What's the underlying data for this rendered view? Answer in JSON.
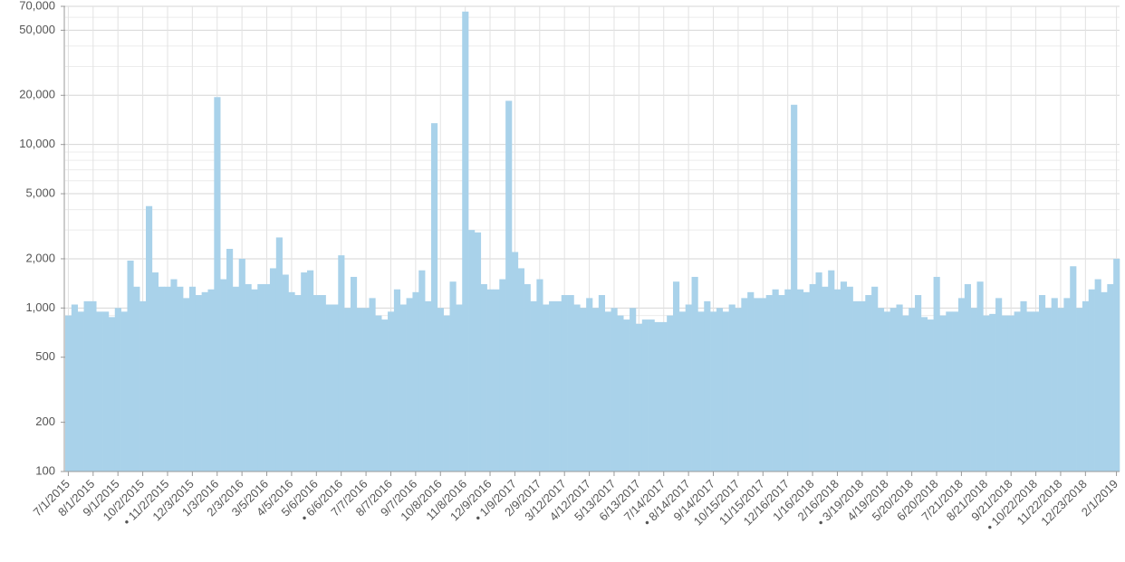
{
  "chart_data": {
    "type": "bar",
    "color": "#a9d2ea",
    "log": true,
    "grid": true,
    "ylim": [
      100,
      70000
    ],
    "yticks": [
      100,
      200,
      500,
      {
        "value": 1000,
        "label": "1,000"
      },
      {
        "value": 2000,
        "label": "2,000"
      },
      {
        "value": 5000,
        "label": "5,000"
      },
      {
        "value": 10000,
        "label": "10,000"
      },
      {
        "value": 20000,
        "label": "20,000"
      },
      {
        "value": 50000,
        "label": "50,000"
      },
      {
        "value": 70000,
        "label": "70,000"
      }
    ],
    "categories": [
      "7/1/2015",
      null,
      null,
      null,
      "8/1/2015",
      null,
      null,
      null,
      "9/1/2015",
      null,
      null,
      null,
      "10/2/2015",
      null,
      null,
      null,
      "• 11/2/2015",
      null,
      null,
      null,
      "12/3/2015",
      null,
      null,
      null,
      "1/3/2016",
      null,
      null,
      null,
      "2/3/2016",
      null,
      null,
      null,
      "3/5/2016",
      null,
      null,
      null,
      "4/5/2016",
      null,
      null,
      null,
      "5/6/2016",
      null,
      null,
      null,
      "• 6/6/2016",
      null,
      null,
      null,
      "7/7/2016",
      null,
      null,
      null,
      "8/7/2016",
      null,
      null,
      null,
      "9/7/2016",
      null,
      null,
      null,
      "10/8/2016",
      null,
      null,
      null,
      "11/8/2016",
      null,
      null,
      null,
      "12/9/2016",
      null,
      null,
      null,
      "• 1/9/2017",
      null,
      null,
      null,
      "2/9/2017",
      null,
      null,
      null,
      "3/12/2017",
      null,
      null,
      null,
      "4/12/2017",
      null,
      null,
      null,
      "5/13/2017",
      null,
      null,
      null,
      "6/13/2017",
      null,
      null,
      null,
      "7/14/2017",
      null,
      null,
      null,
      "• 8/14/2017",
      null,
      null,
      null,
      "9/14/2017",
      null,
      null,
      null,
      "10/15/2017",
      null,
      null,
      null,
      "11/15/2017",
      null,
      null,
      null,
      "12/16/2017",
      null,
      null,
      null,
      "1/16/2018",
      null,
      null,
      null,
      "2/16/2018",
      null,
      null,
      null,
      "• 3/19/2018",
      null,
      null,
      null,
      "4/19/2018",
      null,
      null,
      null,
      "5/20/2018",
      null,
      null,
      null,
      "6/20/2018",
      null,
      null,
      null,
      "7/21/2018",
      null,
      null,
      null,
      "8/21/2018",
      null,
      null,
      null,
      "9/21/2018",
      null,
      null,
      null,
      "• 10/22/2018",
      null,
      null,
      null,
      "11/22/2018",
      null,
      null,
      null,
      "12/23/2018",
      null,
      null,
      null,
      null,
      "2/1/2019"
    ],
    "values": [
      900,
      1050,
      950,
      1100,
      1100,
      950,
      950,
      880,
      1000,
      950,
      1950,
      1350,
      1100,
      4200,
      1650,
      1350,
      1350,
      1500,
      1350,
      1150,
      1350,
      1200,
      1250,
      1300,
      19500,
      1500,
      2300,
      1350,
      2000,
      1400,
      1300,
      1400,
      1400,
      1750,
      2700,
      1600,
      1250,
      1200,
      1650,
      1700,
      1200,
      1200,
      1050,
      1050,
      2100,
      1000,
      1550,
      1000,
      1000,
      1150,
      900,
      850,
      950,
      1300,
      1050,
      1150,
      1250,
      1700,
      1100,
      13500,
      1000,
      900,
      1450,
      1050,
      65000,
      3000,
      2900,
      1400,
      1300,
      1300,
      1500,
      18500,
      2200,
      1750,
      1400,
      1100,
      1500,
      1050,
      1100,
      1100,
      1200,
      1200,
      1050,
      1000,
      1150,
      1000,
      1200,
      950,
      1000,
      900,
      850,
      1000,
      800,
      850,
      850,
      820,
      820,
      900,
      1450,
      950,
      1050,
      1550,
      950,
      1100,
      950,
      1000,
      950,
      1050,
      1000,
      1150,
      1250,
      1150,
      1150,
      1200,
      1300,
      1200,
      1300,
      17500,
      1300,
      1250,
      1400,
      1650,
      1350,
      1700,
      1300,
      1450,
      1350,
      1100,
      1100,
      1200,
      1350,
      1000,
      950,
      1000,
      1050,
      900,
      1000,
      1200,
      880,
      850,
      1550,
      900,
      950,
      950,
      1150,
      1400,
      1000,
      1450,
      900,
      920,
      1150,
      900,
      900,
      950,
      1100,
      950,
      950,
      1200,
      1000,
      1150,
      1000,
      1150,
      1800,
      1000,
      1100,
      1300,
      1500,
      1250,
      1400,
      2000
    ]
  }
}
